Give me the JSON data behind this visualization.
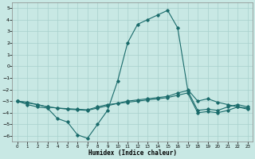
{
  "xlabel": "Humidex (Indice chaleur)",
  "xlim": [
    -0.5,
    23.5
  ],
  "ylim": [
    -6.5,
    5.5
  ],
  "xticks": [
    0,
    1,
    2,
    3,
    4,
    5,
    6,
    7,
    8,
    9,
    10,
    11,
    12,
    13,
    14,
    15,
    16,
    17,
    18,
    19,
    20,
    21,
    22,
    23
  ],
  "yticks": [
    -6,
    -5,
    -4,
    -3,
    -2,
    -1,
    0,
    1,
    2,
    3,
    4,
    5
  ],
  "bg_color": "#c8e8e4",
  "line_color": "#1a6b6b",
  "grid_color": "#a8d0cc",
  "line1_x": [
    0,
    1,
    2,
    3,
    4,
    5,
    6,
    7,
    8,
    9,
    10,
    11,
    12,
    13,
    14,
    15,
    16,
    17,
    18,
    19,
    20,
    21,
    22,
    23
  ],
  "line1_y": [
    -3.0,
    -3.3,
    -3.5,
    -3.6,
    -4.5,
    -4.8,
    -5.9,
    -6.2,
    -5.0,
    -3.8,
    -1.3,
    2.0,
    3.6,
    4.0,
    4.4,
    4.8,
    3.3,
    -2.0,
    -3.0,
    -2.8,
    -3.1,
    -3.3,
    -3.5,
    -3.7
  ],
  "line2_x": [
    0,
    1,
    2,
    3,
    4,
    5,
    6,
    7,
    8,
    9,
    10,
    11,
    12,
    13,
    14,
    15,
    16,
    17,
    18,
    19,
    20,
    21,
    22,
    23
  ],
  "line2_y": [
    -3.0,
    -3.1,
    -3.3,
    -3.5,
    -3.6,
    -3.7,
    -3.75,
    -3.8,
    -3.6,
    -3.4,
    -3.2,
    -3.0,
    -2.9,
    -2.8,
    -2.7,
    -2.6,
    -2.3,
    -2.1,
    -3.8,
    -3.7,
    -3.8,
    -3.5,
    -3.3,
    -3.5
  ],
  "line3_x": [
    0,
    1,
    2,
    3,
    4,
    5,
    6,
    7,
    8,
    9,
    10,
    11,
    12,
    13,
    14,
    15,
    16,
    17,
    18,
    19,
    20,
    21,
    22,
    23
  ],
  "line3_y": [
    -3.0,
    -3.15,
    -3.3,
    -3.5,
    -3.6,
    -3.65,
    -3.7,
    -3.75,
    -3.5,
    -3.3,
    -3.2,
    -3.1,
    -3.0,
    -2.9,
    -2.8,
    -2.7,
    -2.5,
    -2.3,
    -4.0,
    -3.9,
    -4.0,
    -3.8,
    -3.5,
    -3.6
  ]
}
